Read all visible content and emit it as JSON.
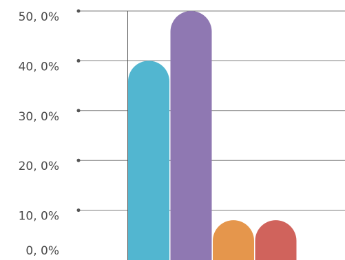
{
  "chart_data": {
    "type": "bar",
    "categories": [
      "",
      "",
      "",
      ""
    ],
    "values": [
      40,
      50,
      8,
      8
    ],
    "ylim": [
      0,
      50
    ],
    "yticks": [
      0,
      10,
      20,
      30,
      40,
      50
    ],
    "ytick_labels": [
      "0, 0%",
      "10, 0%",
      "20, 0%",
      "30, 0%",
      "40, 0%",
      "50, 0%"
    ],
    "grid": true,
    "legend": "none",
    "colors": [
      "#52B6D0",
      "#8F78B2",
      "#E5964C",
      "#D0635C"
    ],
    "gridline_color": "#7a7a7a",
    "axis_color": "#555555"
  }
}
